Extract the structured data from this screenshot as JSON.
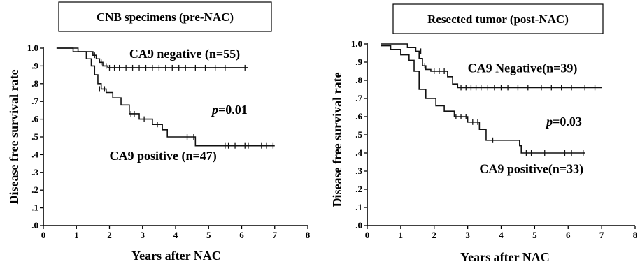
{
  "chart_data": [
    {
      "type": "line",
      "title": "CNB specimens  (pre-NAC)",
      "xlabel": "Years after NAC",
      "ylabel": "Disease free survival rate",
      "xlim": [
        0,
        8
      ],
      "ylim": [
        0,
        1.0
      ],
      "x_ticks": [
        "0",
        "1",
        "2",
        "3",
        "4",
        "5",
        "6",
        "7",
        "8"
      ],
      "y_ticks": [
        ".0",
        ".1",
        ".2",
        ".3",
        ".4",
        ".5",
        ".6",
        ".7",
        ".8",
        ".9",
        "1.0"
      ],
      "grid": false,
      "series": [
        {
          "name": "CA9 negative (n=55)",
          "steps": [
            [
              0.4,
              1.0
            ],
            [
              0.9,
              0.98
            ],
            [
              1.5,
              0.96
            ],
            [
              1.6,
              0.94
            ],
            [
              1.7,
              0.92
            ],
            [
              1.8,
              0.9
            ],
            [
              1.95,
              0.89
            ],
            [
              6.2,
              0.89
            ]
          ],
          "censored": [
            [
              1.55,
              0.96
            ],
            [
              1.75,
              0.92
            ],
            [
              1.9,
              0.9
            ],
            [
              2.0,
              0.89
            ],
            [
              2.15,
              0.89
            ],
            [
              2.3,
              0.89
            ],
            [
              2.5,
              0.89
            ],
            [
              2.7,
              0.89
            ],
            [
              2.9,
              0.89
            ],
            [
              3.1,
              0.89
            ],
            [
              3.3,
              0.89
            ],
            [
              3.5,
              0.89
            ],
            [
              3.7,
              0.89
            ],
            [
              3.9,
              0.89
            ],
            [
              4.1,
              0.89
            ],
            [
              4.3,
              0.89
            ],
            [
              4.6,
              0.89
            ],
            [
              4.9,
              0.89
            ],
            [
              5.2,
              0.89
            ],
            [
              5.5,
              0.89
            ],
            [
              6.1,
              0.89
            ]
          ]
        },
        {
          "name": "CA9 positive (n=47)",
          "steps": [
            [
              0.4,
              1.0
            ],
            [
              1.05,
              0.98
            ],
            [
              1.3,
              0.94
            ],
            [
              1.45,
              0.9
            ],
            [
              1.55,
              0.85
            ],
            [
              1.65,
              0.8
            ],
            [
              1.75,
              0.77
            ],
            [
              1.9,
              0.75
            ],
            [
              2.1,
              0.72
            ],
            [
              2.35,
              0.68
            ],
            [
              2.6,
              0.63
            ],
            [
              2.9,
              0.6
            ],
            [
              3.3,
              0.57
            ],
            [
              3.6,
              0.54
            ],
            [
              3.75,
              0.5
            ],
            [
              4.6,
              0.45
            ],
            [
              7.0,
              0.45
            ]
          ],
          "censored": [
            [
              1.7,
              0.77
            ],
            [
              1.85,
              0.77
            ],
            [
              2.65,
              0.63
            ],
            [
              2.75,
              0.63
            ],
            [
              3.05,
              0.6
            ],
            [
              3.45,
              0.57
            ],
            [
              4.35,
              0.5
            ],
            [
              4.55,
              0.5
            ],
            [
              5.5,
              0.45
            ],
            [
              5.6,
              0.45
            ],
            [
              5.8,
              0.45
            ],
            [
              6.1,
              0.45
            ],
            [
              6.2,
              0.45
            ],
            [
              6.6,
              0.45
            ],
            [
              6.75,
              0.45
            ],
            [
              6.95,
              0.45
            ]
          ]
        }
      ],
      "annotations": [
        {
          "text": "CA9 negative (n=55)",
          "x": 2.6,
          "y": 0.945
        },
        {
          "text_italic": "p",
          "text": "=0.01",
          "x": 5.1,
          "y": 0.63
        },
        {
          "text": "CA9 positive  (n=47)",
          "x": 2.0,
          "y": 0.37
        }
      ]
    },
    {
      "type": "line",
      "title": "Resected tumor  (post-NAC)",
      "xlabel": "Years after NAC",
      "ylabel": "Disease free survival rate",
      "xlim": [
        0,
        8
      ],
      "ylim": [
        0,
        1.0
      ],
      "x_ticks": [
        "0",
        "1",
        "2",
        "3",
        "4",
        "5",
        "6",
        "7",
        "8"
      ],
      "y_ticks": [
        ".0",
        ".1",
        ".2",
        ".3",
        ".4",
        ".5",
        ".6",
        ".7",
        ".8",
        ".9",
        "1.0"
      ],
      "grid": false,
      "series": [
        {
          "name": "CA9 Negative(n=39)",
          "steps": [
            [
              0.4,
              1.0
            ],
            [
              1.2,
              0.98
            ],
            [
              1.45,
              0.96
            ],
            [
              1.55,
              0.92
            ],
            [
              1.65,
              0.88
            ],
            [
              1.75,
              0.86
            ],
            [
              1.9,
              0.85
            ],
            [
              2.4,
              0.82
            ],
            [
              2.55,
              0.78
            ],
            [
              2.7,
              0.76
            ],
            [
              7.0,
              0.76
            ]
          ],
          "censored": [
            [
              1.6,
              0.96
            ],
            [
              1.72,
              0.88
            ],
            [
              2.0,
              0.85
            ],
            [
              2.15,
              0.85
            ],
            [
              2.3,
              0.85
            ],
            [
              2.8,
              0.76
            ],
            [
              2.95,
              0.76
            ],
            [
              3.1,
              0.76
            ],
            [
              3.25,
              0.76
            ],
            [
              3.4,
              0.76
            ],
            [
              3.6,
              0.76
            ],
            [
              3.8,
              0.76
            ],
            [
              4.0,
              0.76
            ],
            [
              4.2,
              0.76
            ],
            [
              4.5,
              0.76
            ],
            [
              4.8,
              0.76
            ],
            [
              5.2,
              0.76
            ],
            [
              5.5,
              0.76
            ],
            [
              5.8,
              0.76
            ],
            [
              6.1,
              0.76
            ],
            [
              6.5,
              0.76
            ],
            [
              6.8,
              0.76
            ]
          ]
        },
        {
          "name": "CA9 positive(n=33)",
          "steps": [
            [
              0.4,
              0.99
            ],
            [
              0.7,
              0.97
            ],
            [
              1.0,
              0.94
            ],
            [
              1.25,
              0.91
            ],
            [
              1.4,
              0.85
            ],
            [
              1.55,
              0.75
            ],
            [
              1.75,
              0.7
            ],
            [
              2.05,
              0.66
            ],
            [
              2.3,
              0.63
            ],
            [
              2.6,
              0.6
            ],
            [
              3.0,
              0.57
            ],
            [
              3.35,
              0.53
            ],
            [
              3.55,
              0.47
            ],
            [
              4.55,
              0.44
            ],
            [
              4.6,
              0.4
            ],
            [
              6.5,
              0.4
            ]
          ],
          "censored": [
            [
              2.65,
              0.6
            ],
            [
              2.8,
              0.6
            ],
            [
              2.95,
              0.6
            ],
            [
              3.15,
              0.57
            ],
            [
              3.3,
              0.57
            ],
            [
              3.75,
              0.47
            ],
            [
              4.75,
              0.4
            ],
            [
              4.9,
              0.4
            ],
            [
              5.3,
              0.4
            ],
            [
              5.9,
              0.4
            ],
            [
              6.1,
              0.4
            ],
            [
              6.45,
              0.4
            ]
          ]
        }
      ],
      "annotations": [
        {
          "text": "CA9 Negative(n=39)",
          "x": 3.0,
          "y": 0.845
        },
        {
          "text_italic": "p",
          "text": "=0.03",
          "x": 5.35,
          "y": 0.55
        },
        {
          "text": "CA9 positive(n=33)",
          "x": 3.35,
          "y": 0.29
        }
      ]
    }
  ]
}
